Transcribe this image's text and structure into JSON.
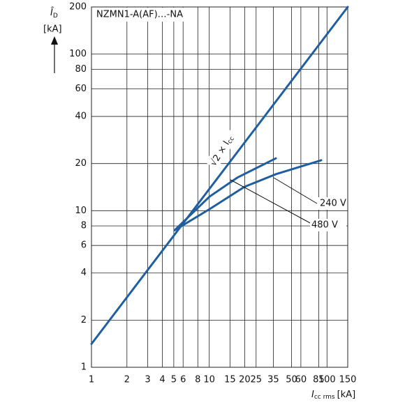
{
  "chart_data": {
    "type": "line",
    "title": "NZMN1-A(AF)…-NA",
    "ylabel": {
      "symbol": "Î",
      "sub": "D",
      "unit": "[kA]"
    },
    "xlabel": {
      "symbol": "I",
      "sub": "cc rms",
      "unit": "[kA]"
    },
    "xscale": "log",
    "yscale": "log",
    "grid": true,
    "xlim": [
      1,
      150
    ],
    "ylim": [
      1,
      200
    ],
    "xticks": [
      1,
      2,
      3,
      4,
      5,
      6,
      8,
      10,
      15,
      20,
      25,
      35,
      50,
      60,
      85,
      100,
      150
    ],
    "yticks": [
      1,
      2,
      4,
      6,
      8,
      10,
      20,
      40,
      60,
      80,
      100,
      200
    ],
    "annotation": {
      "text": "√2 × I",
      "sub": "cc"
    },
    "series": [
      {
        "color": "#1f5f9f",
        "x": [
          1,
          150
        ],
        "values": [
          1.41,
          200
        ]
      },
      {
        "name": "240 V",
        "color": "#1f5f9f",
        "x": [
          5.08,
          10,
          19.9,
          36.8,
          89.4
        ],
        "values": [
          7.5,
          10.2,
          14.2,
          17.1,
          21
        ]
      },
      {
        "name": "480 V",
        "color": "#1f5f9f",
        "x": [
          5.08,
          10.05,
          17.4,
          36.8
        ],
        "values": [
          7.5,
          12.3,
          16.3,
          21.6
        ]
      }
    ]
  }
}
